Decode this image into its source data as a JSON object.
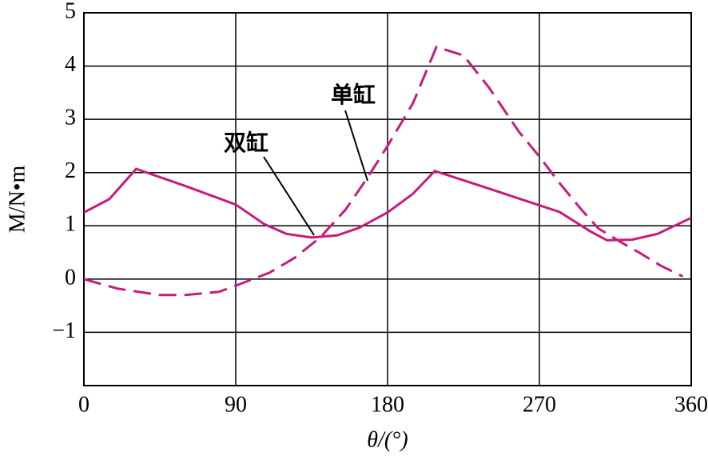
{
  "chart_data": {
    "type": "line",
    "xlabel": "θ/(°)",
    "ylabel": "M/N•m",
    "xlim": [
      0,
      360
    ],
    "xticks": [
      0,
      90,
      180,
      270,
      360
    ],
    "ylim": [
      -2,
      5
    ],
    "yticks": [
      {
        "value": -1,
        "label": "−1"
      },
      0,
      1,
      2,
      3,
      4,
      5
    ],
    "grid": true,
    "series": [
      {
        "name": "单缸",
        "color": "#c81a7c",
        "dashed": true,
        "x": [
          0,
          20,
          45,
          60,
          80,
          92,
          110,
          125,
          140,
          155,
          168,
          180,
          195,
          209,
          225,
          240,
          258,
          270,
          282,
          295,
          305,
          318,
          329,
          342,
          355
        ],
        "values": [
          0,
          -0.18,
          -0.3,
          -0.3,
          -0.24,
          -0.1,
          0.12,
          0.4,
          0.78,
          1.3,
          1.9,
          2.5,
          3.3,
          4.36,
          4.2,
          3.6,
          2.76,
          2.3,
          1.8,
          1.3,
          0.95,
          0.7,
          0.5,
          0.25,
          0.05
        ]
      },
      {
        "name": "双缸",
        "color": "#c81a7c",
        "dashed": false,
        "x": [
          0,
          15,
          31,
          60,
          90,
          107,
          120,
          135,
          150,
          163,
          180,
          195,
          208,
          240,
          282,
          300,
          310,
          325,
          340,
          360
        ],
        "values": [
          1.25,
          1.5,
          2.07,
          1.75,
          1.4,
          1.03,
          0.85,
          0.78,
          0.82,
          0.96,
          1.25,
          1.6,
          2.03,
          1.7,
          1.26,
          0.9,
          0.73,
          0.74,
          0.85,
          1.15
        ]
      }
    ]
  }
}
